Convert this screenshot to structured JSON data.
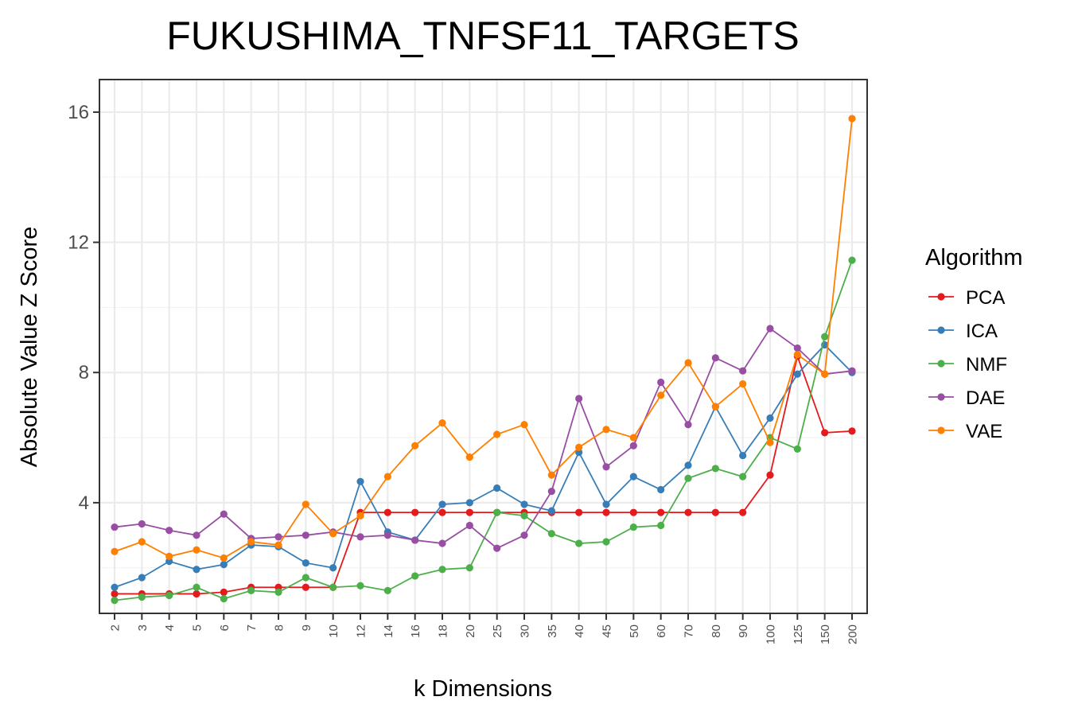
{
  "chart_data": {
    "type": "line",
    "title": "FUKUSHIMA_TNFSF11_TARGETS",
    "xlabel": "k Dimensions",
    "ylabel": "Absolute Value Z Score",
    "categories": [
      "2",
      "3",
      "4",
      "5",
      "6",
      "7",
      "8",
      "9",
      "10",
      "12",
      "14",
      "16",
      "18",
      "20",
      "25",
      "30",
      "35",
      "40",
      "45",
      "50",
      "60",
      "70",
      "80",
      "90",
      "100",
      "125",
      "150",
      "200"
    ],
    "y_ticks": [
      4,
      8,
      12,
      16
    ],
    "ylim": [
      0.6,
      17.0
    ],
    "grid": true,
    "legend": {
      "title": "Algorithm",
      "position": "right"
    },
    "series": [
      {
        "name": "PCA",
        "color": "#e41a1c",
        "values": [
          1.2,
          1.2,
          1.2,
          1.2,
          1.25,
          1.4,
          1.4,
          1.4,
          1.4,
          3.7,
          3.7,
          3.7,
          3.7,
          3.7,
          3.7,
          3.7,
          3.7,
          3.7,
          3.7,
          3.7,
          3.7,
          3.7,
          3.7,
          3.7,
          4.85,
          8.5,
          6.15,
          6.2
        ]
      },
      {
        "name": "ICA",
        "color": "#377eb8",
        "values": [
          1.4,
          1.7,
          2.2,
          1.95,
          2.1,
          2.7,
          2.65,
          2.15,
          2.0,
          4.65,
          3.1,
          2.85,
          3.95,
          4.0,
          4.45,
          3.95,
          3.75,
          5.55,
          3.95,
          4.8,
          4.4,
          5.15,
          6.95,
          5.45,
          6.6,
          7.95,
          8.85,
          8.0
        ]
      },
      {
        "name": "NMF",
        "color": "#4daf4a",
        "values": [
          1.0,
          1.1,
          1.15,
          1.4,
          1.05,
          1.3,
          1.25,
          1.7,
          1.4,
          1.45,
          1.3,
          1.75,
          1.95,
          2.0,
          3.7,
          3.6,
          3.05,
          2.75,
          2.8,
          3.25,
          3.3,
          4.75,
          5.05,
          4.8,
          6.0,
          5.65,
          9.1,
          11.45
        ]
      },
      {
        "name": "DAE",
        "color": "#984ea3",
        "values": [
          3.25,
          3.35,
          3.15,
          3.0,
          3.65,
          2.9,
          2.95,
          3.0,
          3.1,
          2.95,
          3.0,
          2.85,
          2.75,
          3.3,
          2.6,
          3.0,
          4.35,
          7.2,
          5.1,
          5.75,
          7.7,
          6.4,
          8.45,
          8.05,
          9.35,
          8.75,
          7.95,
          8.05
        ]
      },
      {
        "name": "VAE",
        "color": "#ff7f00",
        "values": [
          2.5,
          2.8,
          2.35,
          2.55,
          2.3,
          2.8,
          2.7,
          3.95,
          3.05,
          3.6,
          4.8,
          5.75,
          6.45,
          5.4,
          6.1,
          6.4,
          4.85,
          5.7,
          6.25,
          6.0,
          7.3,
          8.3,
          6.95,
          7.65,
          5.85,
          8.55,
          7.95,
          15.8
        ]
      }
    ]
  }
}
